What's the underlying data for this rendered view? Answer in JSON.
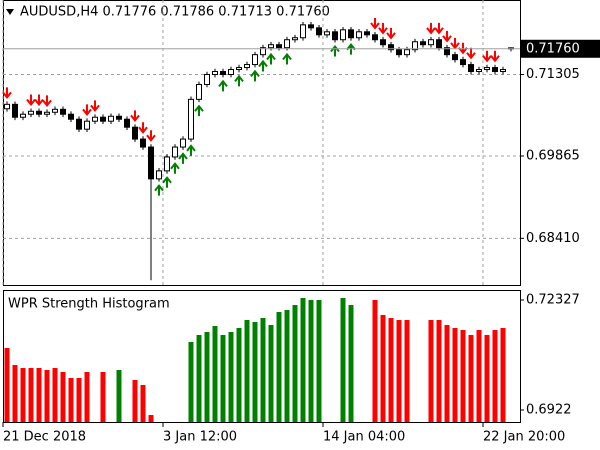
{
  "chart_data": [
    {
      "type": "candlestick",
      "title": "AUDUSD,H4  0.71776 0.71786 0.71713 0.71760",
      "categories": [
        "21 Dec 2018",
        null,
        null,
        null,
        null,
        null,
        null,
        null,
        null,
        null,
        null,
        null,
        null,
        null,
        null,
        null,
        null,
        null,
        null,
        null,
        "3 Jan 12:00",
        null,
        null,
        null,
        null,
        null,
        null,
        null,
        null,
        null,
        null,
        null,
        null,
        null,
        null,
        null,
        null,
        null,
        null,
        null,
        "14 Jan 04:00",
        null,
        null,
        null,
        null,
        null,
        null,
        null,
        null,
        null,
        null,
        null,
        null,
        null,
        null,
        null,
        null,
        null,
        null,
        null,
        "22 Jan 20:00",
        null,
        null,
        null
      ],
      "open": [
        0.707,
        0.70778,
        0.7055,
        0.70603,
        0.70655,
        0.70603,
        0.70638,
        0.7069,
        0.70603,
        0.70515,
        0.70339,
        0.7048,
        0.7055,
        0.7048,
        0.70567,
        0.70515,
        0.70374,
        0.70164,
        0.70023,
        0.69461,
        0.69602,
        0.69848,
        0.70023,
        0.70164,
        0.70866,
        0.71129,
        0.71305,
        0.71358,
        0.71305,
        0.71393,
        0.71428,
        0.71481,
        0.71656,
        0.71779,
        0.71832,
        0.71779,
        0.7192,
        0.71955,
        0.72183,
        0.7213,
        0.72007,
        0.7206,
        0.7192,
        0.72095,
        0.71955,
        0.7206,
        0.72007,
        0.7192,
        0.71832,
        0.71744,
        0.71656,
        0.71744,
        0.71884,
        0.71832,
        0.7192,
        0.71779,
        0.71656,
        0.71568,
        0.71481,
        0.71358,
        0.71393,
        0.71428,
        0.71358,
        0.71776
      ],
      "high": [
        0.7083,
        0.70828,
        0.70653,
        0.70705,
        0.70705,
        0.70688,
        0.7074,
        0.7074,
        0.70653,
        0.70565,
        0.7053,
        0.706,
        0.706,
        0.70617,
        0.70617,
        0.70565,
        0.70424,
        0.70214,
        0.70073,
        0.69652,
        0.69898,
        0.70073,
        0.70214,
        0.70916,
        0.71179,
        0.71355,
        0.71408,
        0.71408,
        0.71443,
        0.71478,
        0.71531,
        0.71706,
        0.71829,
        0.71882,
        0.71882,
        0.7197,
        0.72005,
        0.72233,
        0.72233,
        0.7218,
        0.7211,
        0.7211,
        0.72145,
        0.72145,
        0.7211,
        0.7211,
        0.72057,
        0.7197,
        0.71882,
        0.71794,
        0.71794,
        0.71934,
        0.71934,
        0.7197,
        0.7197,
        0.71829,
        0.71706,
        0.71618,
        0.71531,
        0.71443,
        0.71478,
        0.71478,
        0.71443,
        0.71786
      ],
      "low": [
        0.7065,
        0.705,
        0.705,
        0.70553,
        0.70553,
        0.70553,
        0.70588,
        0.70553,
        0.70465,
        0.70289,
        0.70289,
        0.7043,
        0.7043,
        0.7043,
        0.70465,
        0.70324,
        0.70114,
        0.69973,
        0.6767,
        0.69411,
        0.69552,
        0.69798,
        0.69973,
        0.70114,
        0.70816,
        0.71079,
        0.71255,
        0.71255,
        0.71255,
        0.71343,
        0.71378,
        0.71431,
        0.71606,
        0.71729,
        0.71729,
        0.71729,
        0.7187,
        0.71905,
        0.7208,
        0.71957,
        0.71957,
        0.7187,
        0.7187,
        0.71905,
        0.71905,
        0.71957,
        0.7187,
        0.71782,
        0.71694,
        0.71606,
        0.71606,
        0.71694,
        0.71782,
        0.71782,
        0.71729,
        0.71606,
        0.71518,
        0.71431,
        0.71308,
        0.71308,
        0.71343,
        0.71308,
        0.71308,
        0.71713
      ],
      "close": [
        0.70778,
        0.7055,
        0.70603,
        0.70655,
        0.70603,
        0.70638,
        0.7069,
        0.70603,
        0.70515,
        0.70339,
        0.7048,
        0.7055,
        0.7048,
        0.70567,
        0.70515,
        0.70374,
        0.70164,
        0.70023,
        0.69461,
        0.69602,
        0.69848,
        0.70023,
        0.70164,
        0.70866,
        0.71129,
        0.71305,
        0.71358,
        0.71305,
        0.71393,
        0.71428,
        0.71481,
        0.71656,
        0.71779,
        0.71832,
        0.71779,
        0.7192,
        0.71955,
        0.72183,
        0.7213,
        0.72007,
        0.7206,
        0.7192,
        0.72095,
        0.71955,
        0.7206,
        0.72007,
        0.7192,
        0.71832,
        0.71744,
        0.71656,
        0.71744,
        0.71884,
        0.71832,
        0.7192,
        0.71779,
        0.71656,
        0.71568,
        0.71481,
        0.71358,
        0.71393,
        0.71428,
        0.71358,
        0.71393,
        0.7176
      ],
      "signals": [
        "down",
        null,
        null,
        "down",
        "down",
        "down",
        null,
        null,
        null,
        null,
        "down",
        "down",
        null,
        null,
        null,
        null,
        "down",
        "down",
        "down",
        "up",
        "up",
        "up",
        "up",
        "up",
        "up",
        null,
        null,
        "up",
        null,
        "up",
        null,
        "up",
        "up",
        "up",
        null,
        "up",
        null,
        null,
        null,
        null,
        null,
        "up",
        null,
        "up",
        null,
        null,
        "down",
        "down",
        "down",
        null,
        null,
        null,
        null,
        "down",
        "down",
        "down",
        "down",
        "down",
        "down",
        null,
        "down",
        "down",
        null,
        null
      ],
      "color": "#000000",
      "signal_colors": {
        "up": "#008000",
        "down": "#ff0000"
      },
      "ylim": [
        0.67585,
        0.72622
      ],
      "yticks": [
        0.71305,
        0.69865,
        {
          "value": 0.6841,
          "label": "0.68410"
        }
      ],
      "last_price": {
        "value": 0.7176,
        "label": "0.71760"
      },
      "grid": true
    },
    {
      "type": "bar",
      "title": "WPR Strength Histogram",
      "values": [
        0.70971,
        0.70491,
        0.70406,
        0.70406,
        0.70406,
        0.7035,
        0.70406,
        0.70293,
        0.70124,
        0.70124,
        0.70293,
        null,
        0.70293,
        null,
        0.7035,
        null,
        0.70067,
        0.69926,
        0.69079,
        null,
        null,
        null,
        null,
        0.71141,
        0.71338,
        0.71423,
        0.71592,
        0.71338,
        0.71423,
        0.71536,
        0.71762,
        0.71705,
        0.71818,
        0.71621,
        0.71988,
        0.72044,
        0.72185,
        0.72383,
        0.72327,
        0.72327,
        null,
        null,
        0.72383,
        0.72185,
        null,
        null,
        0.72327,
        0.71903,
        0.71818,
        0.71762,
        0.71762,
        null,
        null,
        0.71762,
        0.71762,
        0.71621,
        0.71536,
        0.71479,
        0.71338,
        0.71479,
        0.71338,
        0.71479,
        0.71536,
        null
      ],
      "bar_colors": [
        "#ff0000",
        "#ff0000",
        "#ff0000",
        "#ff0000",
        "#ff0000",
        "#ff0000",
        "#ff0000",
        "#ff0000",
        "#ff0000",
        "#ff0000",
        "#ff0000",
        null,
        "#ff0000",
        null,
        "#008000",
        null,
        "#ff0000",
        "#ff0000",
        "#ff0000",
        null,
        null,
        null,
        null,
        "#008000",
        "#008000",
        "#008000",
        "#008000",
        "#008000",
        "#008000",
        "#008000",
        "#008000",
        "#008000",
        "#008000",
        "#008000",
        "#008000",
        "#008000",
        "#008000",
        "#008000",
        "#008000",
        "#008000",
        null,
        null,
        "#008000",
        "#008000",
        null,
        null,
        "#ff0000",
        "#ff0000",
        "#ff0000",
        "#ff0000",
        "#ff0000",
        null,
        null,
        "#ff0000",
        "#ff0000",
        "#ff0000",
        "#ff0000",
        "#ff0000",
        "#ff0000",
        "#ff0000",
        "#ff0000",
        "#ff0000",
        "#ff0000",
        null
      ],
      "ylim": [
        0.68881,
        0.72609
      ],
      "yticks": [
        0.72327,
        0.6922
      ]
    }
  ]
}
